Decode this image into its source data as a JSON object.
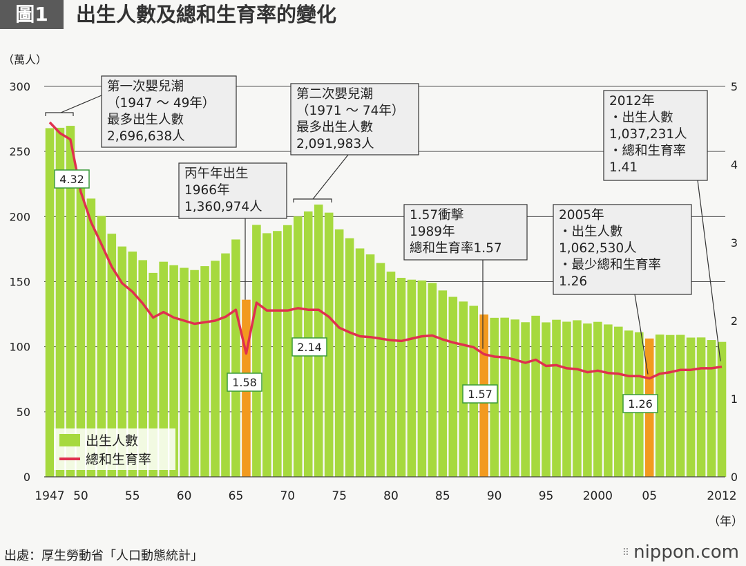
{
  "header": {
    "figure_label": "圖1",
    "title": "出生人數及總和生育率的變化"
  },
  "footer": {
    "source": "出處：厚生勞動省「人口動態統計」",
    "logo": "nippon.com",
    "logo_dots": "⠿"
  },
  "colors": {
    "bar": "#a6d93e",
    "bar_highlight": "#f29a1f",
    "line": "#e0304e",
    "grid": "#555555"
  },
  "chart_data": {
    "type": "bar",
    "y_unit_label": "（萬人）",
    "x_unit_label": "（年）",
    "ylim": [
      0,
      300
    ],
    "y2lim": [
      0,
      5
    ],
    "yticks": [
      0,
      50,
      100,
      150,
      200,
      250,
      300
    ],
    "y2ticks": [
      0,
      1,
      2,
      3,
      4,
      5
    ],
    "x_tick_labels": [
      {
        "year": 1947,
        "label": "1947"
      },
      {
        "year": 1950,
        "label": "50"
      },
      {
        "year": 1955,
        "label": "55"
      },
      {
        "year": 1960,
        "label": "60"
      },
      {
        "year": 1965,
        "label": "65"
      },
      {
        "year": 1970,
        "label": "70"
      },
      {
        "year": 1975,
        "label": "75"
      },
      {
        "year": 1980,
        "label": "80"
      },
      {
        "year": 1985,
        "label": "85"
      },
      {
        "year": 1990,
        "label": "90"
      },
      {
        "year": 1995,
        "label": "95"
      },
      {
        "year": 2000,
        "label": "2000"
      },
      {
        "year": 2005,
        "label": "05"
      },
      {
        "year": 2012,
        "label": "2012"
      }
    ],
    "years": [
      1947,
      1948,
      1949,
      1950,
      1951,
      1952,
      1953,
      1954,
      1955,
      1956,
      1957,
      1958,
      1959,
      1960,
      1961,
      1962,
      1963,
      1964,
      1965,
      1966,
      1967,
      1968,
      1969,
      1970,
      1971,
      1972,
      1973,
      1974,
      1975,
      1976,
      1977,
      1978,
      1979,
      1980,
      1981,
      1982,
      1983,
      1984,
      1985,
      1986,
      1987,
      1988,
      1989,
      1990,
      1991,
      1992,
      1993,
      1994,
      1995,
      1996,
      1997,
      1998,
      1999,
      2000,
      2001,
      2002,
      2003,
      2004,
      2005,
      2006,
      2007,
      2008,
      2009,
      2010,
      2011,
      2012
    ],
    "series": [
      {
        "name": "出生人數",
        "axis": "left",
        "values": [
          267.9,
          268.2,
          269.7,
          233.8,
          213.8,
          200.5,
          186.8,
          177.0,
          173.1,
          166.5,
          156.7,
          165.3,
          162.6,
          160.6,
          158.9,
          161.9,
          166.0,
          171.7,
          182.4,
          136.1,
          193.6,
          187.2,
          188.9,
          193.4,
          200.1,
          203.9,
          209.2,
          203.0,
          190.1,
          183.3,
          175.5,
          170.9,
          164.3,
          157.7,
          152.9,
          151.5,
          150.9,
          149.0,
          143.2,
          138.3,
          134.7,
          131.4,
          124.7,
          122.2,
          122.3,
          120.9,
          118.8,
          123.8,
          118.7,
          120.7,
          119.2,
          120.3,
          117.8,
          119.1,
          117.1,
          115.4,
          112.4,
          111.1,
          106.3,
          109.3,
          109.0,
          109.1,
          107.0,
          107.1,
          105.1,
          103.7
        ]
      },
      {
        "name": "總和生育率",
        "axis": "right",
        "values": [
          4.54,
          4.4,
          4.32,
          3.65,
          3.26,
          2.98,
          2.69,
          2.48,
          2.37,
          2.22,
          2.04,
          2.11,
          2.04,
          2.0,
          1.96,
          1.98,
          2.0,
          2.05,
          2.14,
          1.58,
          2.23,
          2.13,
          2.13,
          2.13,
          2.16,
          2.14,
          2.14,
          2.05,
          1.91,
          1.85,
          1.8,
          1.79,
          1.77,
          1.75,
          1.74,
          1.77,
          1.8,
          1.81,
          1.76,
          1.72,
          1.69,
          1.66,
          1.57,
          1.54,
          1.53,
          1.5,
          1.46,
          1.5,
          1.42,
          1.43,
          1.39,
          1.38,
          1.34,
          1.36,
          1.33,
          1.32,
          1.29,
          1.29,
          1.26,
          1.32,
          1.34,
          1.37,
          1.37,
          1.39,
          1.39,
          1.41
        ]
      }
    ],
    "highlight_years": [
      1966,
      1989,
      2005
    ],
    "legend": {
      "position": "bottom-left",
      "bar_label": "出生人數",
      "line_label": "總和生育率"
    },
    "value_labels": [
      {
        "year": 1949,
        "value": "4.32"
      },
      {
        "year": 1966,
        "value": "1.58"
      },
      {
        "year": 1972,
        "value": "2.14"
      },
      {
        "year": 1989,
        "value": "1.57"
      },
      {
        "year": 2005,
        "value": "1.26"
      }
    ],
    "annotations": [
      {
        "id": "boom1",
        "lines": [
          "第一次嬰兒潮",
          "（1947 ～ 49年）",
          "最多出生人數",
          "2,696,638人"
        ]
      },
      {
        "id": "hinoeuma",
        "lines": [
          "丙午年出生",
          "1966年",
          "1,360,974人"
        ]
      },
      {
        "id": "boom2",
        "lines": [
          "第二次嬰兒潮",
          "（1971 ～ 74年）",
          "最多出生人數",
          "2,091,983人"
        ]
      },
      {
        "id": "shock157",
        "lines": [
          "1.57衝擊",
          "1989年",
          "總和生育率1.57"
        ]
      },
      {
        "id": "y2005",
        "lines": [
          "2005年",
          "・出生人數",
          "1,062,530人",
          "・最少總和生育率",
          "1.26"
        ]
      },
      {
        "id": "y2012",
        "lines": [
          "2012年",
          "・出生人數",
          "1,037,231人",
          "・總和生育率",
          "1.41"
        ]
      }
    ]
  }
}
